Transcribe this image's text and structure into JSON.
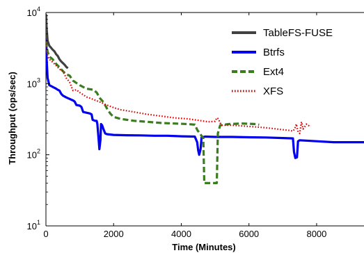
{
  "chart_data": {
    "type": "line",
    "title": "",
    "xlabel": "Time (Minutes)",
    "ylabel": "Throughput (ops/sec)",
    "xlim": [
      0,
      9400
    ],
    "ylim": [
      10,
      10000
    ],
    "yscale": "log",
    "x_ticks": [
      0,
      2000,
      4000,
      6000,
      8000
    ],
    "x_tick_labels": [
      "0",
      "2000",
      "4000",
      "6000",
      "8000"
    ],
    "y_ticks": [
      10,
      100,
      1000,
      10000
    ],
    "y_tick_labels": [
      {
        "base": "10",
        "exp": "1"
      },
      {
        "base": "10",
        "exp": "2"
      },
      {
        "base": "10",
        "exp": "3"
      },
      {
        "base": "10",
        "exp": "4"
      }
    ],
    "grid": false,
    "legend_position": "top-right",
    "series": [
      {
        "name": "TableFS-FUSE",
        "color": "#404040",
        "style": "solid",
        "points": [
          [
            0,
            9500
          ],
          [
            20,
            6000
          ],
          [
            50,
            4000
          ],
          [
            100,
            3400
          ],
          [
            150,
            3200
          ],
          [
            200,
            3000
          ],
          [
            250,
            2850
          ],
          [
            300,
            2600
          ],
          [
            350,
            2450
          ],
          [
            400,
            2200
          ],
          [
            450,
            2050
          ],
          [
            500,
            1950
          ],
          [
            550,
            1850
          ],
          [
            600,
            1720
          ],
          [
            650,
            1650
          ]
        ]
      },
      {
        "name": "Btrfs",
        "color": "#0000ee",
        "style": "solid",
        "points": [
          [
            0,
            9000
          ],
          [
            20,
            2200
          ],
          [
            50,
            1200
          ],
          [
            100,
            950
          ],
          [
            200,
            900
          ],
          [
            300,
            850
          ],
          [
            350,
            820
          ],
          [
            400,
            800
          ],
          [
            450,
            720
          ],
          [
            500,
            680
          ],
          [
            600,
            640
          ],
          [
            700,
            610
          ],
          [
            800,
            580
          ],
          [
            850,
            560
          ],
          [
            900,
            500
          ],
          [
            1000,
            490
          ],
          [
            1050,
            470
          ],
          [
            1100,
            400
          ],
          [
            1200,
            390
          ],
          [
            1300,
            380
          ],
          [
            1350,
            370
          ],
          [
            1380,
            310
          ],
          [
            1450,
            300
          ],
          [
            1500,
            300
          ],
          [
            1520,
            270
          ],
          [
            1560,
            160
          ],
          [
            1580,
            120
          ],
          [
            1610,
            160
          ],
          [
            1630,
            270
          ],
          [
            1660,
            260
          ],
          [
            1700,
            230
          ],
          [
            1750,
            200
          ],
          [
            1800,
            195
          ],
          [
            2000,
            190
          ],
          [
            2400,
            188
          ],
          [
            2800,
            187
          ],
          [
            3200,
            185
          ],
          [
            3600,
            185
          ],
          [
            4000,
            182
          ],
          [
            4400,
            180
          ],
          [
            4470,
            150
          ],
          [
            4500,
            115
          ],
          [
            4530,
            100
          ],
          [
            4570,
            120
          ],
          [
            4600,
            175
          ],
          [
            4700,
            180
          ],
          [
            5000,
            178
          ],
          [
            5500,
            178
          ],
          [
            6000,
            176
          ],
          [
            6500,
            175
          ],
          [
            7000,
            172
          ],
          [
            7300,
            170
          ],
          [
            7330,
            110
          ],
          [
            7370,
            90
          ],
          [
            7420,
            92
          ],
          [
            7450,
            155
          ],
          [
            7500,
            160
          ],
          [
            8000,
            155
          ],
          [
            8500,
            150
          ],
          [
            9000,
            150
          ],
          [
            9400,
            150
          ]
        ]
      },
      {
        "name": "Ext4",
        "color": "#3a7d1f",
        "style": "dashed",
        "points": [
          [
            0,
            9000
          ],
          [
            20,
            3500
          ],
          [
            50,
            2800
          ],
          [
            100,
            2400
          ],
          [
            200,
            2200
          ],
          [
            300,
            1900
          ],
          [
            400,
            1700
          ],
          [
            500,
            1500
          ],
          [
            600,
            1350
          ],
          [
            700,
            1300
          ],
          [
            800,
            1100
          ],
          [
            1000,
            950
          ],
          [
            1200,
            850
          ],
          [
            1400,
            820
          ],
          [
            1500,
            750
          ],
          [
            1600,
            620
          ],
          [
            1700,
            550
          ],
          [
            1800,
            450
          ],
          [
            1900,
            380
          ],
          [
            2000,
            340
          ],
          [
            2100,
            330
          ],
          [
            2200,
            320
          ],
          [
            2400,
            310
          ],
          [
            2600,
            300
          ],
          [
            3000,
            290
          ],
          [
            3400,
            280
          ],
          [
            3800,
            275
          ],
          [
            4200,
            270
          ],
          [
            4400,
            265
          ],
          [
            4480,
            220
          ],
          [
            4550,
            200
          ],
          [
            4650,
            170
          ],
          [
            4680,
            40
          ],
          [
            5050,
            40
          ],
          [
            5080,
            200
          ],
          [
            5150,
            260
          ],
          [
            5400,
            270
          ],
          [
            5800,
            275
          ],
          [
            6200,
            270
          ],
          [
            6300,
            265
          ]
        ]
      },
      {
        "name": "XFS",
        "color": "#e00000",
        "style": "dotted",
        "points": [
          [
            0,
            9000
          ],
          [
            20,
            3000
          ],
          [
            50,
            2400
          ],
          [
            100,
            2200
          ],
          [
            200,
            2000
          ],
          [
            300,
            1800
          ],
          [
            400,
            1600
          ],
          [
            500,
            1500
          ],
          [
            600,
            1200
          ],
          [
            700,
            1050
          ],
          [
            800,
            800
          ],
          [
            900,
            820
          ],
          [
            1000,
            750
          ],
          [
            1100,
            700
          ],
          [
            1200,
            650
          ],
          [
            1400,
            600
          ],
          [
            1600,
            550
          ],
          [
            1800,
            500
          ],
          [
            2000,
            460
          ],
          [
            2200,
            430
          ],
          [
            2600,
            400
          ],
          [
            3000,
            370
          ],
          [
            3400,
            350
          ],
          [
            3800,
            330
          ],
          [
            4200,
            320
          ],
          [
            4600,
            300
          ],
          [
            4800,
            290
          ],
          [
            5000,
            295
          ],
          [
            5050,
            330
          ],
          [
            5100,
            320
          ],
          [
            5150,
            280
          ],
          [
            5200,
            260
          ],
          [
            5500,
            260
          ],
          [
            6000,
            250
          ],
          [
            6500,
            240
          ],
          [
            7000,
            225
          ],
          [
            7200,
            220
          ],
          [
            7300,
            215
          ],
          [
            7350,
            230
          ],
          [
            7400,
            270
          ],
          [
            7450,
            210
          ],
          [
            7500,
            200
          ],
          [
            7550,
            290
          ],
          [
            7600,
            230
          ],
          [
            7700,
            270
          ],
          [
            7800,
            250
          ]
        ]
      }
    ]
  }
}
